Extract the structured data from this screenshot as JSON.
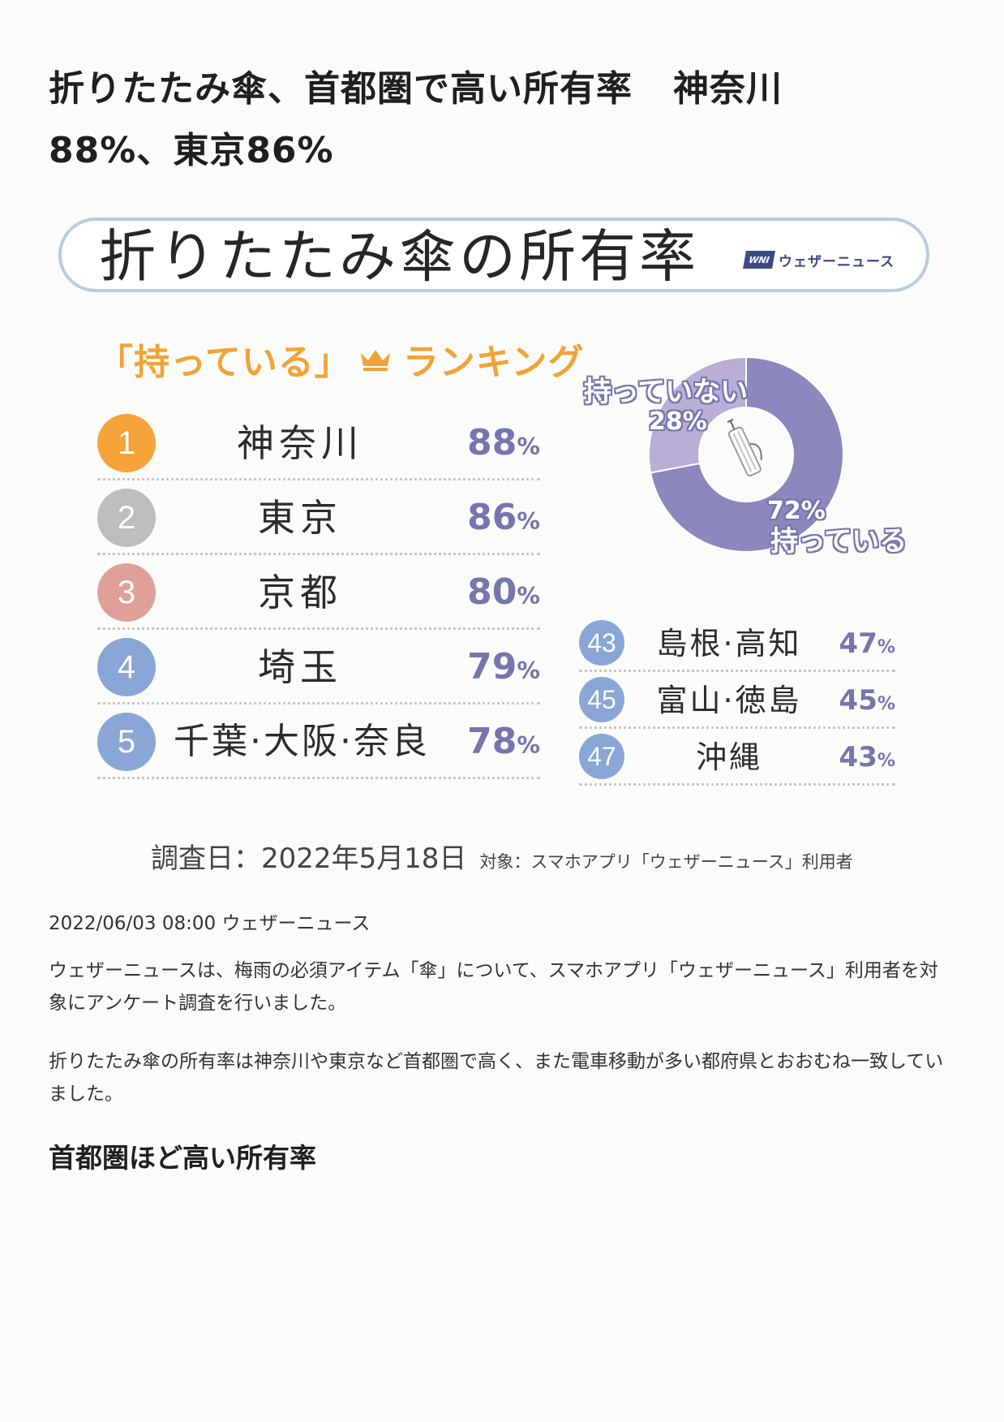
{
  "article": {
    "headline_part1": "折りたたみ傘、首都圏で高い所有率",
    "headline_part2": "神奈川",
    "headline_part3": "88%、東京86%"
  },
  "infographic": {
    "title": "折りたたみ傘の所有率",
    "brand_logo": "WNI",
    "brand_name": "ウェザーニュース",
    "ranking_heading_pre": "「持っている」",
    "ranking_heading_post": "ランキング",
    "top_ranking": [
      {
        "rank": "1",
        "name": "神奈川",
        "percent": "88",
        "color": "#f6a33b"
      },
      {
        "rank": "2",
        "name": "東京",
        "percent": "86",
        "color": "#bdbdbd"
      },
      {
        "rank": "3",
        "name": "京都",
        "percent": "80",
        "color": "#e0a09a"
      },
      {
        "rank": "4",
        "name": "埼玉",
        "percent": "79",
        "color": "#8aa6d6"
      },
      {
        "rank": "5",
        "name": "千葉·大阪·奈良",
        "percent": "78",
        "color": "#8aa6d6"
      }
    ],
    "bottom_ranking": [
      {
        "rank": "43",
        "name": "島根·高知",
        "percent": "47",
        "color": "#8aa6d6"
      },
      {
        "rank": "45",
        "name": "富山·徳島",
        "percent": "45",
        "color": "#8aa6d6"
      },
      {
        "rank": "47",
        "name": "沖縄",
        "percent": "43",
        "color": "#8aa6d6"
      }
    ],
    "percent_unit": "%",
    "survey_date": "調査日：2022年5月18日",
    "survey_target": "対象：スマホアプリ「ウェザーニュース」利用者",
    "colors": {
      "have": "#8a88bc",
      "not_have": "#b9aed6",
      "accent": "#f2a336",
      "banner_border": "#b9cde0"
    }
  },
  "chart_data": {
    "type": "pie",
    "categories": [
      "持っている",
      "持っていない"
    ],
    "values": [
      72,
      28
    ],
    "labels": [
      "72%",
      "28%"
    ],
    "title": ""
  },
  "body": {
    "meta": "2022/06/03 08:00 ウェザーニュース",
    "paragraph1": "ウェザーニュースは、梅雨の必須アイテム「傘」について、スマホアプリ「ウェザーニュース」利用者を対象にアンケート調査を行いました。",
    "paragraph2": "折りたたみ傘の所有率は神奈川や東京など首都圏で高く、また電車移動が多い都府県とおおむね一致していました。",
    "subheading": "首都圏ほど高い所有率"
  }
}
